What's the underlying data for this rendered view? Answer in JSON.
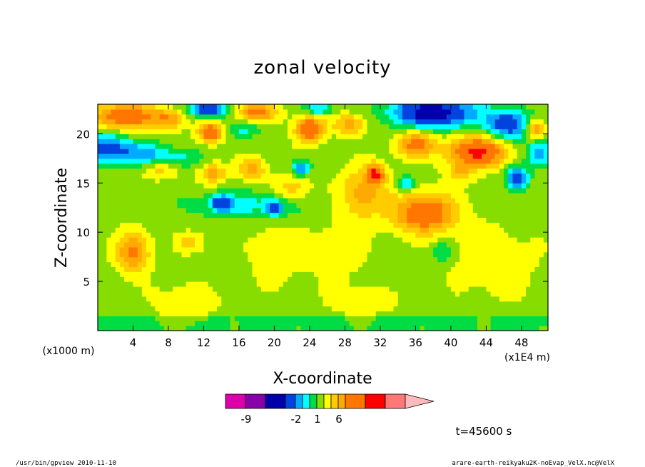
{
  "chart_data": {
    "type": "heatmap",
    "title": "zonal velocity",
    "xlabel": "X-coordinate",
    "ylabel": "Z-coordinate",
    "x_unit": "(x1E4 m)",
    "y_unit": "(x1000 m)",
    "xlim": [
      0,
      51
    ],
    "ylim": [
      0,
      23
    ],
    "x_ticks": [
      {
        "v": 4,
        "label": "4"
      },
      {
        "v": 8,
        "label": "8"
      },
      {
        "v": 12,
        "label": "12"
      },
      {
        "v": 16,
        "label": "16"
      },
      {
        "v": 20,
        "label": "20"
      },
      {
        "v": 24,
        "label": "24"
      },
      {
        "v": 28,
        "label": "28"
      },
      {
        "v": 32,
        "label": "32"
      },
      {
        "v": 36,
        "label": "36"
      },
      {
        "v": 40,
        "label": "40"
      },
      {
        "v": 44,
        "label": "44"
      },
      {
        "v": 48,
        "label": "48"
      }
    ],
    "y_ticks": [
      {
        "v": 5,
        "label": "5"
      },
      {
        "v": 10,
        "label": "10"
      },
      {
        "v": 15,
        "label": "15"
      },
      {
        "v": 20,
        "label": "20"
      }
    ],
    "colorbar": {
      "colors": [
        "#dd00aa",
        "#8800aa",
        "#0000aa",
        "#0044dd",
        "#00aaff",
        "#00ffff",
        "#00dd44",
        "#88dd00",
        "#ffff00",
        "#ffcc00",
        "#ffaa00",
        "#ff7700",
        "#ff0000",
        "#ff7777"
      ],
      "over_color": "#ffbbbb",
      "tick_labels": [
        {
          "after_box": 1,
          "label": "-9"
        },
        {
          "after_box": 4,
          "label": "-2"
        },
        {
          "after_box": 7,
          "label": "1"
        },
        {
          "after_box": 10,
          "label": "6"
        }
      ]
    },
    "time_label": "t=45600 s",
    "footer_left": "/usr/bin/gpview   2010-11-10",
    "footer_right": "arare-earth-reikyaku2K-noEvap_VelX.nc@VelX",
    "field_blobs": [
      {
        "x": 1,
        "z": 18.5,
        "rx": 2.5,
        "rz": 1.6,
        "v": -4
      },
      {
        "x": 5,
        "z": 18,
        "rx": 2.8,
        "rz": 1.2,
        "v": -3
      },
      {
        "x": 9,
        "z": 17.5,
        "rx": 2.5,
        "rz": 1.0,
        "v": -2
      },
      {
        "x": 3,
        "z": 21.8,
        "rx": 3.5,
        "rz": 1.3,
        "v": 5
      },
      {
        "x": 8,
        "z": 21.5,
        "rx": 1.8,
        "rz": 1.0,
        "v": 3
      },
      {
        "x": 12.5,
        "z": 22.5,
        "rx": 2.0,
        "rz": 0.8,
        "v": -5
      },
      {
        "x": 12.8,
        "z": 20.2,
        "rx": 1.4,
        "rz": 1.0,
        "v": 5
      },
      {
        "x": 18,
        "z": 22.2,
        "rx": 2.2,
        "rz": 1.0,
        "v": 4
      },
      {
        "x": 16.5,
        "z": 20.5,
        "rx": 2.0,
        "rz": 0.8,
        "v": -2
      },
      {
        "x": 24,
        "z": 20.5,
        "rx": 1.6,
        "rz": 1.3,
        "v": 5
      },
      {
        "x": 28.5,
        "z": 21,
        "rx": 1.8,
        "rz": 1.0,
        "v": 3
      },
      {
        "x": 25,
        "z": 22.5,
        "rx": 1.5,
        "rz": 0.6,
        "v": -3
      },
      {
        "x": 38,
        "z": 22.2,
        "rx": 4.5,
        "rz": 1.5,
        "v": -7
      },
      {
        "x": 46.5,
        "z": 21,
        "rx": 2.5,
        "rz": 1.5,
        "v": -5
      },
      {
        "x": 50,
        "z": 18,
        "rx": 1.3,
        "rz": 1.2,
        "v": -4
      },
      {
        "x": 49.5,
        "z": 20.5,
        "rx": 1.0,
        "rz": 1.0,
        "v": 4
      },
      {
        "x": 36,
        "z": 19,
        "rx": 2.2,
        "rz": 1.3,
        "v": 4
      },
      {
        "x": 43,
        "z": 18.2,
        "rx": 3.2,
        "rz": 1.5,
        "v": 6
      },
      {
        "x": 47.5,
        "z": 15.5,
        "rx": 1.2,
        "rz": 1.2,
        "v": -5
      },
      {
        "x": 35,
        "z": 15,
        "rx": 1.0,
        "rz": 0.8,
        "v": -3
      },
      {
        "x": 31.5,
        "z": 16,
        "rx": 1.0,
        "rz": 1.0,
        "v": 5
      },
      {
        "x": 30,
        "z": 14,
        "rx": 2.5,
        "rz": 2.5,
        "v": 3
      },
      {
        "x": 37,
        "z": 12,
        "rx": 3.5,
        "rz": 2.0,
        "v": 5
      },
      {
        "x": 41,
        "z": 16,
        "rx": 1.5,
        "rz": 1.0,
        "v": 2
      },
      {
        "x": 17,
        "z": 12.8,
        "rx": 6.5,
        "rz": 1.4,
        "v": -2
      },
      {
        "x": 14,
        "z": 13,
        "rx": 1.2,
        "rz": 0.8,
        "v": -4
      },
      {
        "x": 20,
        "z": 12.5,
        "rx": 1.0,
        "rz": 0.8,
        "v": -4
      },
      {
        "x": 23,
        "z": 16.5,
        "rx": 1.0,
        "rz": 0.8,
        "v": -4
      },
      {
        "x": 17.5,
        "z": 16.5,
        "rx": 1.5,
        "rz": 1.2,
        "v": 3
      },
      {
        "x": 22,
        "z": 14.5,
        "rx": 2.0,
        "rz": 1.5,
        "v": 2
      },
      {
        "x": 7,
        "z": 16.5,
        "rx": 2.0,
        "rz": 1.0,
        "v": 2
      },
      {
        "x": 13,
        "z": 16,
        "rx": 1.5,
        "rz": 1.0,
        "v": 3
      },
      {
        "x": 4,
        "z": 8,
        "rx": 1.8,
        "rz": 2.0,
        "v": 4
      },
      {
        "x": 10.5,
        "z": 9,
        "rx": 1.5,
        "rz": 1.0,
        "v": 2
      },
      {
        "x": 20,
        "z": 8,
        "rx": 3.0,
        "rz": 3.5,
        "v": 1
      },
      {
        "x": 27,
        "z": 8,
        "rx": 3.5,
        "rz": 3.0,
        "v": 1
      },
      {
        "x": 45,
        "z": 7,
        "rx": 5.0,
        "rz": 4.0,
        "v": 1
      },
      {
        "x": 10,
        "z": 3,
        "rx": 4.0,
        "rz": 2.0,
        "v": 1
      },
      {
        "x": 30,
        "z": 3,
        "rx": 4.0,
        "rz": 1.5,
        "v": 1
      },
      {
        "x": 39,
        "z": 8,
        "rx": 1.0,
        "rz": 1.0,
        "v": -2
      },
      {
        "x": 14,
        "z": 5,
        "rx": 1.5,
        "rz": 1.0,
        "v": -0.5
      },
      {
        "x": 34,
        "z": 6,
        "rx": 2.0,
        "rz": 1.5,
        "v": -0.5
      }
    ]
  }
}
